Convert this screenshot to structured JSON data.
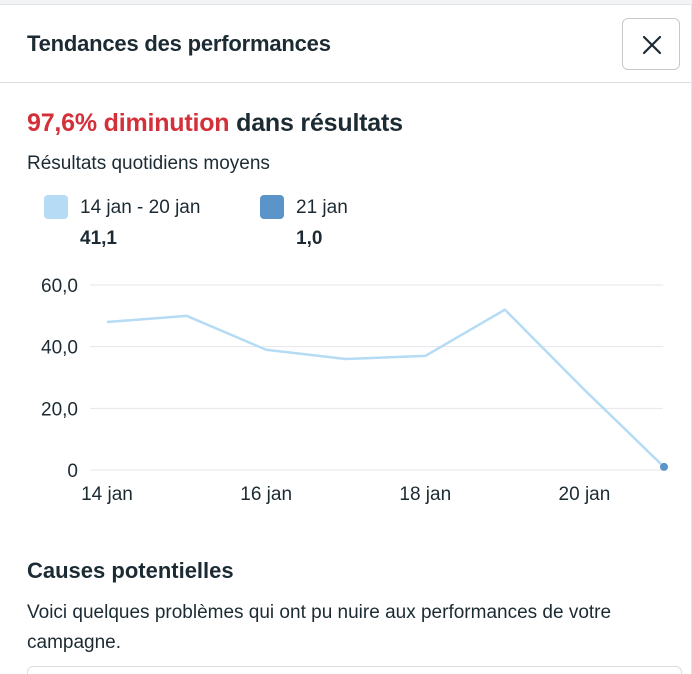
{
  "dialog": {
    "title": "Tendances des performances",
    "close_icon": "close-icon"
  },
  "headline": {
    "change_text": "97,6% diminution",
    "rest_text": " dans résultats",
    "change_color": "#d3303a"
  },
  "subtitle": "Résultats quotidiens moyens",
  "legend": [
    {
      "label": "14 jan - 20 jan",
      "value": "41,1",
      "color": "#b5dcf4"
    },
    {
      "label": "21 jan",
      "value": "1,0",
      "color": "#5a94c8"
    }
  ],
  "chart_data": {
    "type": "line",
    "x": [
      "14 jan",
      "15 jan",
      "16 jan",
      "17 jan",
      "18 jan",
      "19 jan",
      "20 jan",
      "21 jan"
    ],
    "series": [
      {
        "name": "14 jan - 20 jan",
        "values": [
          48,
          50,
          39,
          36,
          37,
          52,
          26,
          null
        ],
        "color": "#b5dcf4"
      },
      {
        "name": "21 jan",
        "values": [
          null,
          null,
          null,
          null,
          null,
          null,
          null,
          1
        ],
        "color": "#5a94c8"
      }
    ],
    "connector": {
      "from_index": 6,
      "to_index": 7,
      "values": [
        26,
        1
      ],
      "color": "#b5dcf4"
    },
    "y_ticks": [
      "60,0",
      "40,0",
      "20,0",
      "0"
    ],
    "y_tick_values": [
      60,
      40,
      20,
      0
    ],
    "x_tick_labels": [
      "14 jan",
      "16 jan",
      "18 jan",
      "20 jan"
    ],
    "x_tick_indices": [
      0,
      2,
      4,
      6
    ],
    "ylim": [
      0,
      60
    ],
    "grid": true,
    "title": "",
    "xlabel": "",
    "ylabel": ""
  },
  "causes": {
    "title": "Causes potentielles",
    "body": "Voici quelques problèmes qui ont pu nuire aux performances de votre campagne."
  }
}
